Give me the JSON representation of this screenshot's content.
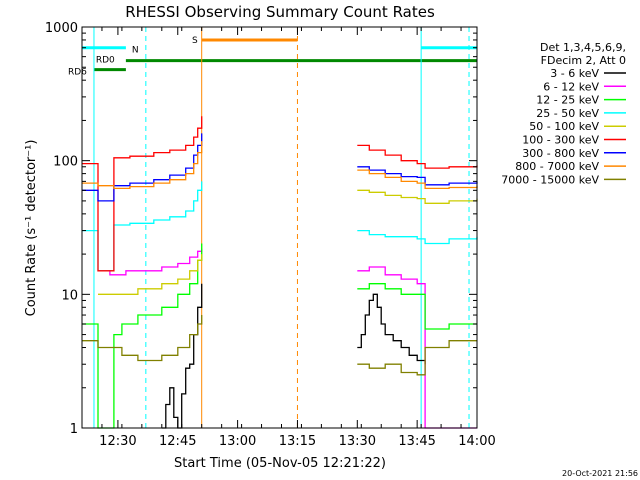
{
  "chart_data": {
    "type": "line",
    "title": "RHESSI Observing Summary Count Rates",
    "xlabel": "Start Time (05-Nov-05 12:21:22)",
    "ylabel": "Count Rate (s⁻¹ detector⁻¹)",
    "yscale": "log",
    "ylim": [
      1,
      1000
    ],
    "xlim": [
      0,
      99
    ],
    "x_unit": "minutes after 12:21:22",
    "x_ticks": [
      {
        "value": 9,
        "label": "12:30"
      },
      {
        "value": 24,
        "label": "12:45"
      },
      {
        "value": 39,
        "label": "13:00"
      },
      {
        "value": 54,
        "label": "13:15"
      },
      {
        "value": 69,
        "label": "13:30"
      },
      {
        "value": 84,
        "label": "13:45"
      },
      {
        "value": 99,
        "label": "14:00"
      }
    ],
    "y_ticks": [
      {
        "value": 1,
        "label": "1"
      },
      {
        "value": 10,
        "label": "10"
      },
      {
        "value": 100,
        "label": "100"
      },
      {
        "value": 1000,
        "label": "1000"
      }
    ],
    "timestamp": "20-Oct-2021 21:56",
    "legend": {
      "placement": "right",
      "header": [
        "Det 1,3,4,5,6,9,",
        "FDecim 2, Att 0"
      ]
    },
    "series": [
      {
        "name": "3 - 6 keV",
        "color": "#000000",
        "segments": [
          [
            [
              20,
              1
            ],
            [
              21,
              1.5
            ],
            [
              22,
              2
            ],
            [
              23,
              1.2
            ],
            [
              24,
              1
            ],
            [
              25,
              1.8
            ],
            [
              26,
              2.8
            ],
            [
              27,
              3
            ],
            [
              28,
              5
            ],
            [
              29,
              8
            ],
            [
              30,
              12
            ]
          ],
          [
            [
              69,
              4
            ],
            [
              70,
              5
            ],
            [
              71,
              7
            ],
            [
              72,
              9
            ],
            [
              73,
              10
            ],
            [
              74,
              8
            ],
            [
              75,
              6
            ],
            [
              76,
              5
            ],
            [
              78,
              4.5
            ],
            [
              80,
              4
            ],
            [
              82,
              3.5
            ],
            [
              84,
              3.2
            ],
            [
              86,
              3
            ]
          ]
        ]
      },
      {
        "name": "6 - 12 keV",
        "color": "#ff00ff",
        "segments": [
          [
            [
              4,
              15
            ],
            [
              7,
              14
            ],
            [
              10,
              14
            ],
            [
              11,
              15
            ],
            [
              14,
              15
            ],
            [
              20,
              16
            ],
            [
              24,
              17
            ],
            [
              27,
              19
            ],
            [
              29,
              21
            ],
            [
              30,
              22
            ]
          ],
          [
            [
              69,
              15
            ],
            [
              72,
              16
            ],
            [
              76,
              14
            ],
            [
              80,
              13
            ],
            [
              84,
              12
            ],
            [
              85,
              12
            ],
            [
              86,
              1
            ],
            [
              99,
              1
            ]
          ]
        ]
      },
      {
        "name": "12 - 25 keV",
        "color": "#00ff00",
        "segments": [
          [
            [
              0,
              6
            ],
            [
              3,
              6
            ],
            [
              4,
              1
            ],
            [
              7,
              1
            ],
            [
              8,
              5
            ],
            [
              10,
              6
            ],
            [
              14,
              7
            ],
            [
              20,
              8
            ],
            [
              24,
              10
            ],
            [
              27,
              12
            ],
            [
              29,
              18
            ],
            [
              30,
              24
            ]
          ],
          [
            [
              69,
              11
            ],
            [
              72,
              12
            ],
            [
              76,
              11
            ],
            [
              80,
              10
            ],
            [
              84,
              10
            ],
            [
              86,
              5.5
            ],
            [
              92,
              6
            ],
            [
              99,
              6
            ]
          ]
        ]
      },
      {
        "name": "25 - 50 keV",
        "color": "#00ffff",
        "segments": [
          [
            [
              0,
              30
            ],
            [
              3,
              30
            ],
            [
              4,
              15
            ],
            [
              7,
              15
            ],
            [
              8,
              33
            ],
            [
              12,
              34
            ],
            [
              18,
              36
            ],
            [
              22,
              38
            ],
            [
              26,
              42
            ],
            [
              28,
              50
            ],
            [
              29,
              60
            ],
            [
              30,
              70
            ]
          ],
          [
            [
              69,
              30
            ],
            [
              72,
              28
            ],
            [
              76,
              27
            ],
            [
              80,
              27
            ],
            [
              84,
              26
            ],
            [
              86,
              24
            ],
            [
              92,
              26
            ],
            [
              99,
              27
            ]
          ]
        ]
      },
      {
        "name": "50 - 100 keV",
        "color": "#cccc00",
        "segments": [
          [
            [
              4,
              10
            ],
            [
              7,
              10
            ],
            [
              8,
              10
            ],
            [
              10,
              10
            ],
            [
              14,
              11
            ],
            [
              20,
              12
            ],
            [
              24,
              13
            ],
            [
              27,
              15
            ],
            [
              29,
              18
            ],
            [
              30,
              20
            ]
          ],
          [
            [
              69,
              60
            ],
            [
              72,
              58
            ],
            [
              76,
              55
            ],
            [
              80,
              53
            ],
            [
              84,
              52
            ],
            [
              86,
              48
            ],
            [
              92,
              50
            ],
            [
              99,
              52
            ]
          ]
        ]
      },
      {
        "name": "100 - 300 keV",
        "color": "#ff0000",
        "segments": [
          [
            [
              0,
              95
            ],
            [
              3,
              95
            ],
            [
              4,
              15
            ],
            [
              7,
              15
            ],
            [
              8,
              105
            ],
            [
              12,
              108
            ],
            [
              18,
              115
            ],
            [
              22,
              120
            ],
            [
              26,
              130
            ],
            [
              28,
              150
            ],
            [
              29,
              175
            ],
            [
              30,
              215
            ]
          ],
          [
            [
              69,
              130
            ],
            [
              72,
              120
            ],
            [
              76,
              110
            ],
            [
              80,
              100
            ],
            [
              84,
              95
            ],
            [
              86,
              88
            ],
            [
              92,
              90
            ],
            [
              99,
              92
            ]
          ]
        ]
      },
      {
        "name": "300 - 800 keV",
        "color": "#0000ff",
        "segments": [
          [
            [
              0,
              60
            ],
            [
              3,
              60
            ],
            [
              4,
              50
            ],
            [
              7,
              50
            ],
            [
              8,
              65
            ],
            [
              12,
              68
            ],
            [
              18,
              72
            ],
            [
              22,
              78
            ],
            [
              26,
              88
            ],
            [
              28,
              110
            ],
            [
              29,
              130
            ],
            [
              30,
              160
            ]
          ],
          [
            [
              69,
              90
            ],
            [
              72,
              85
            ],
            [
              76,
              80
            ],
            [
              80,
              76
            ],
            [
              84,
              75
            ],
            [
              86,
              66
            ],
            [
              92,
              68
            ],
            [
              99,
              70
            ]
          ]
        ]
      },
      {
        "name": "800 - 7000 keV",
        "color": "#ff8800",
        "segments": [
          [
            [
              0,
              68
            ],
            [
              3,
              68
            ],
            [
              4,
              65
            ],
            [
              7,
              65
            ],
            [
              8,
              62
            ],
            [
              12,
              64
            ],
            [
              18,
              68
            ],
            [
              22,
              72
            ],
            [
              26,
              80
            ],
            [
              28,
              95
            ],
            [
              29,
              115
            ],
            [
              30,
              140
            ]
          ],
          [
            [
              69,
              85
            ],
            [
              72,
              80
            ],
            [
              76,
              75
            ],
            [
              80,
              70
            ],
            [
              84,
              68
            ],
            [
              86,
              62
            ],
            [
              92,
              63
            ],
            [
              99,
              65
            ]
          ]
        ]
      },
      {
        "name": "7000 - 15000 keV",
        "color": "#808000",
        "segments": [
          [
            [
              0,
              4.5
            ],
            [
              3,
              4.5
            ],
            [
              4,
              4
            ],
            [
              8,
              4
            ],
            [
              10,
              3.5
            ],
            [
              14,
              3.2
            ],
            [
              20,
              3.5
            ],
            [
              24,
              4
            ],
            [
              27,
              5
            ],
            [
              29,
              6
            ],
            [
              30,
              7
            ]
          ],
          [
            [
              69,
              3
            ],
            [
              72,
              2.8
            ],
            [
              76,
              3
            ],
            [
              80,
              2.6
            ],
            [
              84,
              2.5
            ],
            [
              86,
              4
            ],
            [
              92,
              4.5
            ],
            [
              99,
              4.5
            ]
          ]
        ]
      }
    ],
    "state_bars": [
      {
        "label": "N",
        "color": "#00ffff",
        "y": 700,
        "segments": [
          [
            0,
            11
          ],
          [
            85,
            99
          ]
        ]
      },
      {
        "label": "S",
        "color": "#ff8800",
        "y": 800,
        "segments": [
          [
            30,
            54
          ]
        ]
      },
      {
        "label": "RD0",
        "color": "#008800",
        "y": 560,
        "segments": [
          [
            11,
            99
          ]
        ]
      },
      {
        "label": "RD6",
        "color": "#008800",
        "y": 480,
        "segments": [
          [
            3,
            11
          ]
        ]
      }
    ],
    "vertical_markers": [
      {
        "x": 3,
        "color": "#00ffff",
        "style": "solid"
      },
      {
        "x": 16,
        "color": "#00ffff",
        "style": "dashed"
      },
      {
        "x": 30,
        "color": "#ff8800",
        "style": "solid"
      },
      {
        "x": 54,
        "color": "#ff8800",
        "style": "dashed"
      },
      {
        "x": 85,
        "color": "#00ffff",
        "style": "solid"
      },
      {
        "x": 97,
        "color": "#00ffff",
        "style": "dashed"
      }
    ]
  }
}
